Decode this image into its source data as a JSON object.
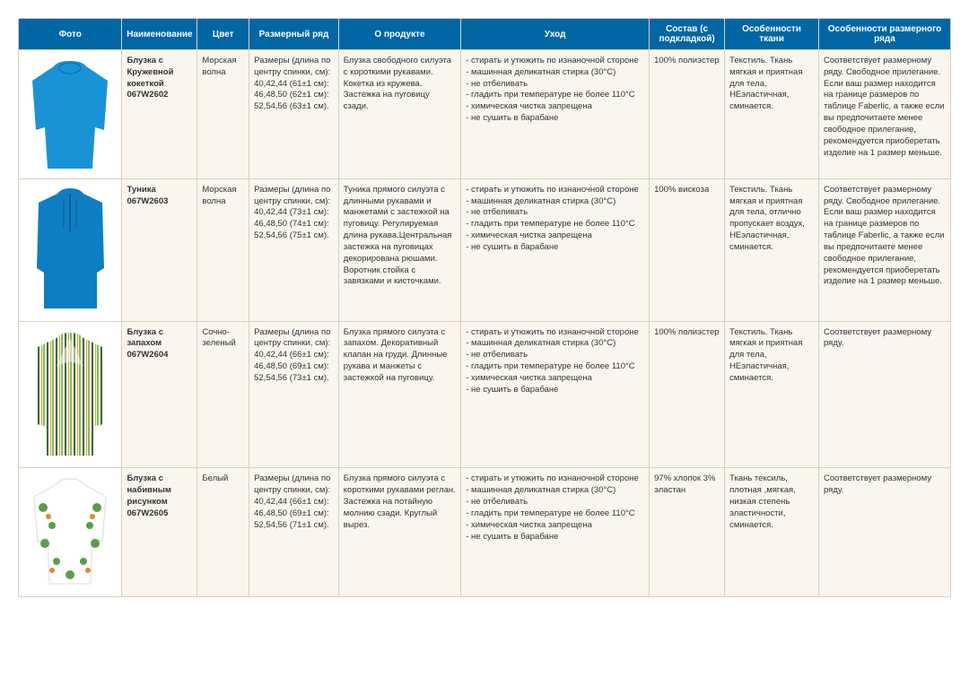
{
  "headers": {
    "photo": "Фото",
    "name": "Наименование",
    "color": "Цвет",
    "sizes": "Размерный ряд",
    "about": "О продукте",
    "care": "Уход",
    "composition": "Состав (с подкладкой)",
    "fabric": "Особенности ткани",
    "fit": "Особенности размерного ряда"
  },
  "rows": [
    {
      "name": "Блузка с Кружевной кокеткой 067W2602",
      "color": "Морская волна",
      "sizes": "Размеры (длина по центру спинки, см): 40,42,44 (61±1 см): 46,48,50 (62±1 см): 52,54,56 (63±1 см).",
      "about": "Блузка свободного силуэта с короткими рукавами. Кокетка из кружева. Застежка на пуговицу сзади.",
      "care": "- стирать и утюжить по изнаночной стороне\n- машинная деликатная стирка (30°С)\n- не отбеливать\n- гладить при температуре не более 110°С\n- химическая чистка запрещена\n- не сушить в барабане",
      "composition": "100% полиэстер",
      "fabric": "Текстиль. Ткань мягкая и приятная для тела, НЕэластичная, сминается.",
      "fit": "Соответствует размерному ряду. Свободное прилегание. Если ваш размер находится на границе размеров по таблице Faberlic, а также если вы предпочитаете менее свободное прилегание, рекомендуется приоберетать изделие на 1 размер меньше.",
      "garment_color": "#1a93d6",
      "garment_type": "blouse-wide"
    },
    {
      "name": "Туника 067W2603",
      "color": "Морская волна",
      "sizes": "Размеры (длина по центру спинки, см): 40,42,44 (73±1 см): 46,48,50 (74±1 см): 52,54,56 (75±1 см).",
      "about": "Туника прямого силуэта с длинными рукавами и манжетами с застежкой на пуговицу. Регулируемая длина рукава.Центральная застежка на пуговицах декорирована рюшами. Воротник стойка с завязками и кисточками.",
      "care": "- стирать и утюжить по изнаночной стороне\n- машинная деликатная стирка (30°С)\n- не отбеливать\n- гладить при температуре не более 110°С\n- химическая чистка запрещена\n- не сушить в барабане",
      "composition": "100% вискоза",
      "fabric": "Текстиль. Ткань мягкая и приятная для тела, отлично пропускает воздух, НЕэластичная, сминается.",
      "fit": "Соответствует размерному ряду. Свободное прилегание. Если ваш размер находится на границе размеров по таблице Faberlic, а также если вы предпочитаете менее свободное прилегание, рекомендуется приоберетать изделие на 1 размер меньше.",
      "garment_color": "#0d7ec4",
      "garment_type": "tunic"
    },
    {
      "name": "Блузка с запахом 067W2604",
      "color": "Сочно-зеленый",
      "sizes": "Размеры (длина по центру спинки, см): 40,42,44 (66±1 см): 46,48,50 (69±1 см): 52,54,56 (73±1 см).",
      "about": "Блузка прямого силуэта с запахом. Декоративный клапан на груди. Длинные рукава и манжеты с застежкой на пуговицу.",
      "care": "- стирать и утюжить по изнаночной стороне\n- машинная деликатная стирка (30°С)\n- не отбеливать\n- гладить при температуре не более 110°С\n- химическая чистка запрещена\n- не сушить в барабане",
      "composition": "100% полиэстер",
      "fabric": "Текстиль. Ткань мягкая и приятная для тела, НЕэластичная, сминается.",
      "fit": "Соответствует размерному ряду.",
      "garment_color": "#8fb956",
      "garment_type": "blouse-stripe"
    },
    {
      "name": "Блузка с набивным рисунком 067W2605",
      "color": "Белый",
      "sizes": "Размеры (длина по центру спинки, см): 40,42,44 (66±1 см): 46,48,50 (69±1 см): 52,54,56 (71±1 см).",
      "about": "Блузка прямого силуэта с короткими рукавами реглан. Застежка на потайную молнию сзади. Круглый вырез.",
      "care": "- стирать и утюжить по изнаночной стороне\n- машинная деликатная стирка (30°С)\n- не отбеливать\n- гладить при температуре не более 110°С\n- химическая чистка запрещена\n- не сушить в барабане",
      "composition": "97% хлопок 3% эластан",
      "fabric": "Ткань тексиль, плотная ,мягкая, низкая степень эластичности, сминается.",
      "fit": "Соответствует размерному ряду.",
      "garment_color": "#ffffff",
      "garment_type": "blouse-print"
    }
  ]
}
